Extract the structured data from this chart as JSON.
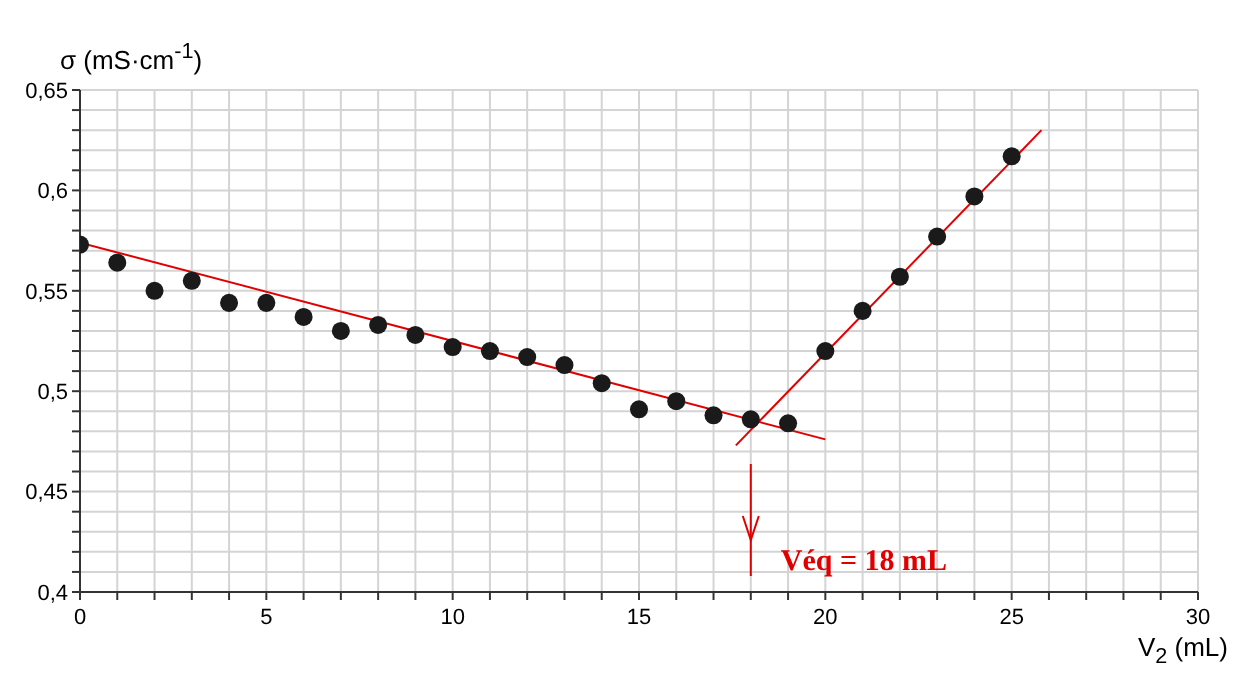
{
  "chart_data": {
    "type": "scatter",
    "xlabel": "V$_{2}$ (mL)",
    "ylabel": "σ (mS·cm$^{-1}$)",
    "xlim": [
      0,
      30
    ],
    "xticks": [
      0,
      {
        "value": 1,
        "label": null
      },
      {
        "value": 2,
        "label": null
      },
      {
        "value": 3,
        "label": null
      },
      {
        "value": 4,
        "label": null
      },
      5,
      {
        "value": 6,
        "label": null
      },
      {
        "value": 7,
        "label": null
      },
      {
        "value": 8,
        "label": null
      },
      {
        "value": 9,
        "label": null
      },
      10,
      {
        "value": 11,
        "label": null
      },
      {
        "value": 12,
        "label": null
      },
      {
        "value": 13,
        "label": null
      },
      {
        "value": 14,
        "label": null
      },
      15,
      {
        "value": 16,
        "label": null
      },
      {
        "value": 17,
        "label": null
      },
      {
        "value": 18,
        "label": null
      },
      {
        "value": 19,
        "label": null
      },
      20,
      {
        "value": 21,
        "label": null
      },
      {
        "value": 22,
        "label": null
      },
      {
        "value": 23,
        "label": null
      },
      {
        "value": 24,
        "label": null
      },
      25,
      {
        "value": 26,
        "label": null
      },
      {
        "value": 27,
        "label": null
      },
      {
        "value": 28,
        "label": null
      },
      {
        "value": 29,
        "label": null
      },
      30
    ],
    "ylim": [
      0.4,
      0.65
    ],
    "yticks": [
      {
        "value": 0.4,
        "label": "0,4"
      },
      {
        "value": 0.41,
        "label": null
      },
      {
        "value": 0.42,
        "label": null
      },
      {
        "value": 0.43,
        "label": null
      },
      {
        "value": 0.44,
        "label": null
      },
      {
        "value": 0.45,
        "label": "0,45"
      },
      {
        "value": 0.46,
        "label": null
      },
      {
        "value": 0.47,
        "label": null
      },
      {
        "value": 0.48,
        "label": null
      },
      {
        "value": 0.49,
        "label": null
      },
      {
        "value": 0.5,
        "label": "0,5"
      },
      {
        "value": 0.51,
        "label": null
      },
      {
        "value": 0.52,
        "label": null
      },
      {
        "value": 0.53,
        "label": null
      },
      {
        "value": 0.54,
        "label": null
      },
      {
        "value": 0.55,
        "label": "0,55"
      },
      {
        "value": 0.56,
        "label": null
      },
      {
        "value": 0.57,
        "label": null
      },
      {
        "value": 0.58,
        "label": null
      },
      {
        "value": 0.59,
        "label": null
      },
      {
        "value": 0.6,
        "label": "0,6"
      },
      {
        "value": 0.61,
        "label": null
      },
      {
        "value": 0.62,
        "label": null
      },
      {
        "value": 0.63,
        "label": null
      },
      {
        "value": 0.64,
        "label": null
      },
      {
        "value": 0.65,
        "label": "0,65"
      }
    ],
    "grid": true,
    "marker": "circle",
    "series": [
      {
        "color": "#1a1a1a",
        "x": [
          0,
          1,
          2,
          3,
          4,
          5,
          6,
          7,
          8,
          9,
          10,
          11,
          12,
          13,
          14,
          15,
          16,
          17,
          18,
          19,
          20,
          21,
          22,
          23,
          24,
          25
        ],
        "values": [
          0.573,
          0.564,
          0.55,
          0.555,
          0.544,
          0.544,
          0.537,
          0.53,
          0.533,
          0.528,
          0.522,
          0.52,
          0.517,
          0.513,
          0.504,
          0.491,
          0.495,
          0.488,
          0.486,
          0.484,
          0.52,
          0.54,
          0.557,
          0.577,
          0.597,
          0.617
        ]
      },
      {
        "type": "line",
        "marker": "none",
        "color": "#e00000",
        "x": [
          0,
          20
        ],
        "values": [
          0.574,
          0.476
        ]
      },
      {
        "type": "line",
        "marker": "none",
        "color": "#e00000",
        "x": [
          17.6,
          25.8
        ],
        "values": [
          0.473,
          0.63
        ]
      }
    ],
    "ref_lines": [
      {
        "axis": "x",
        "value": 18,
        "label": "Véq = 18 mL",
        "color": "#e00000"
      }
    ]
  }
}
